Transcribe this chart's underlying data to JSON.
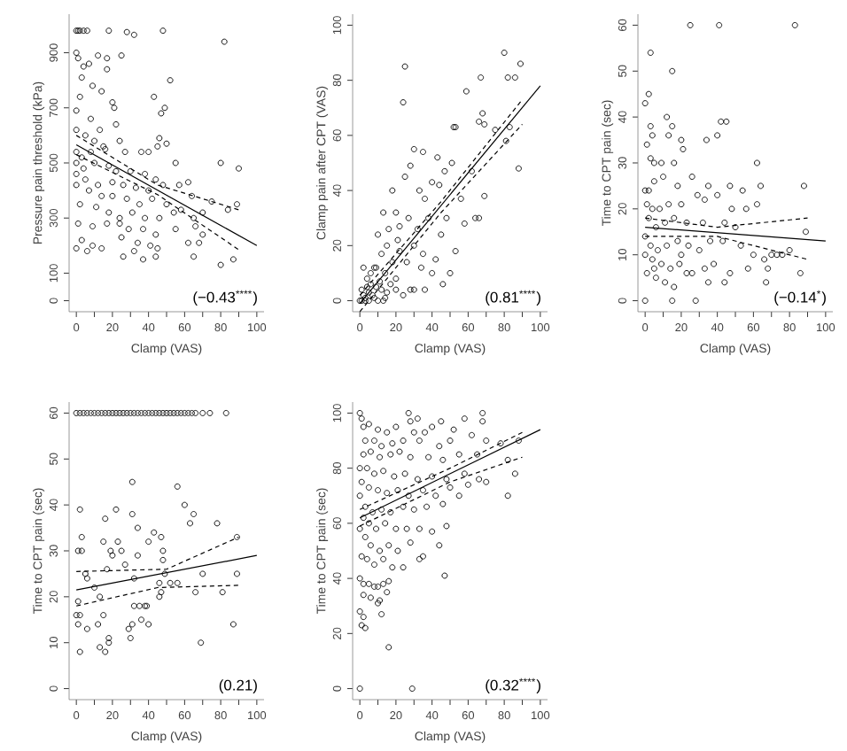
{
  "chart_data": [
    {
      "type": "scatter",
      "xlabel": "Clamp (VAS)",
      "ylabel": "Pressure pain threshold (kPa)",
      "xlim": [
        -4,
        104
      ],
      "ylim": [
        -40,
        1040
      ],
      "xticks": [
        0,
        {
          "value": 10,
          "label": null
        },
        20,
        {
          "value": 30,
          "label": null
        },
        40,
        {
          "value": 50,
          "label": null
        },
        60,
        {
          "value": 70,
          "label": null
        },
        80,
        {
          "value": 90,
          "label": null
        },
        100
      ],
      "yticks": [
        0,
        100,
        300,
        500,
        700,
        900
      ],
      "annotations": [
        "(−0.43$^{****}$)"
      ],
      "series": [
        {
          "marker": "circle",
          "color": "#000000",
          "x": [
            0,
            1,
            2,
            4,
            6,
            18,
            28,
            32,
            48,
            82,
            0,
            1,
            4,
            7,
            12,
            17,
            25,
            17,
            52,
            3,
            9,
            2,
            0,
            14,
            20,
            21,
            43,
            47,
            49,
            8,
            13,
            22,
            0,
            5,
            10,
            15,
            24,
            46,
            50,
            0,
            3,
            8,
            16,
            27,
            36,
            40,
            45,
            0,
            4,
            10,
            18,
            22,
            30,
            38,
            44,
            55,
            0,
            5,
            12,
            20,
            26,
            33,
            40,
            48,
            57,
            62,
            80,
            90,
            0,
            7,
            14,
            20,
            28,
            35,
            42,
            50,
            58,
            64,
            75,
            84,
            89,
            2,
            11,
            18,
            24,
            31,
            38,
            46,
            54,
            65,
            70,
            1,
            9,
            17,
            24,
            29,
            37,
            44,
            55,
            66,
            70,
            3,
            9,
            14,
            25,
            34,
            41,
            45,
            62,
            68,
            0,
            6,
            26,
            44,
            65,
            80,
            87,
            32,
            37
          ],
          "values": [
            980,
            980,
            980,
            980,
            980,
            980,
            975,
            965,
            980,
            940,
            900,
            880,
            850,
            860,
            890,
            880,
            890,
            840,
            800,
            810,
            780,
            740,
            690,
            760,
            720,
            700,
            740,
            680,
            700,
            660,
            620,
            640,
            620,
            600,
            580,
            560,
            580,
            590,
            570,
            540,
            520,
            540,
            550,
            540,
            540,
            540,
            560,
            500,
            480,
            500,
            490,
            470,
            470,
            460,
            440,
            500,
            460,
            440,
            420,
            430,
            420,
            410,
            400,
            420,
            420,
            430,
            500,
            480,
            420,
            400,
            380,
            380,
            370,
            350,
            370,
            350,
            330,
            380,
            360,
            330,
            350,
            350,
            340,
            320,
            300,
            320,
            300,
            300,
            320,
            300,
            320,
            280,
            270,
            280,
            280,
            260,
            260,
            240,
            260,
            270,
            240,
            220,
            200,
            190,
            230,
            210,
            200,
            190,
            210,
            210,
            190,
            180,
            160,
            160,
            160,
            130,
            150,
            180,
            150
          ]
        },
        {
          "type": "line",
          "marker": "none",
          "line_style": "solid",
          "color": "#000000",
          "x": [
            0,
            100
          ],
          "values": [
            566,
            200
          ]
        },
        {
          "type": "line",
          "marker": "none",
          "line_style": "dashed",
          "color": "#000000",
          "x": [
            0,
            45,
            90
          ],
          "values": [
            600,
            420,
            330
          ]
        },
        {
          "type": "line",
          "marker": "none",
          "line_style": "dashed",
          "color": "#000000",
          "x": [
            0,
            45,
            90
          ],
          "values": [
            530,
            385,
            185
          ]
        }
      ]
    },
    {
      "type": "scatter",
      "xlabel": "Clamp (VAS)",
      "ylabel": "Clamp pain after CPT (VAS)",
      "xlim": [
        -4,
        104
      ],
      "ylim": [
        -4,
        104
      ],
      "xticks": [
        0,
        {
          "value": 10,
          "label": null
        },
        20,
        {
          "value": 30,
          "label": null
        },
        40,
        {
          "value": 50,
          "label": null
        },
        60,
        {
          "value": 70,
          "label": null
        },
        80,
        {
          "value": 90,
          "label": null
        },
        100
      ],
      "yticks": [
        0,
        20,
        40,
        60,
        80,
        100
      ],
      "annotations": [
        "(0.81$^{****}$)"
      ],
      "series": [
        {
          "marker": "circle",
          "color": "#000000",
          "x": [
            80,
            89,
            25,
            82,
            86,
            67,
            59,
            24,
            68,
            66,
            69,
            75,
            52,
            53,
            83,
            81,
            30,
            35,
            88,
            43,
            47,
            62,
            28,
            51,
            40,
            44,
            18,
            25,
            33,
            36,
            56,
            69,
            66,
            20,
            13,
            27,
            38,
            48,
            58,
            64,
            16,
            22,
            32,
            45,
            53,
            10,
            15,
            21,
            30,
            35,
            42,
            50,
            12,
            18,
            26,
            34,
            40,
            46,
            8,
            14,
            20,
            28,
            30,
            36,
            2,
            4,
            6,
            9,
            12,
            15,
            20,
            1,
            2,
            3,
            5,
            7,
            0,
            1,
            3,
            5,
            8,
            10,
            14,
            4,
            6,
            9,
            11,
            13,
            17,
            22,
            24
          ],
          "values": [
            90,
            86,
            85,
            81,
            81,
            81,
            76,
            72,
            68,
            65,
            64,
            62,
            63,
            63,
            63,
            58,
            55,
            54,
            48,
            52,
            47,
            47,
            49,
            50,
            43,
            42,
            40,
            45,
            40,
            37,
            37,
            38,
            30,
            32,
            32,
            30,
            30,
            30,
            28,
            30,
            26,
            27,
            26,
            24,
            18,
            24,
            20,
            22,
            20,
            17,
            15,
            10,
            17,
            14,
            14,
            12,
            10,
            6,
            12,
            10,
            8,
            4,
            4,
            4,
            12,
            8,
            6,
            5,
            4,
            3,
            4,
            4,
            2,
            1,
            3,
            2,
            0,
            0,
            0,
            0,
            1,
            0,
            1,
            5,
            10,
            12,
            7,
            0,
            6,
            18,
            2
          ]
        },
        {
          "type": "line",
          "marker": "none",
          "line_style": "solid",
          "color": "#000000",
          "x": [
            0,
            100
          ],
          "values": [
            -1,
            78
          ]
        },
        {
          "type": "line",
          "marker": "none",
          "line_style": "dashed",
          "color": "#000000",
          "x": [
            0,
            45,
            90
          ],
          "values": [
            2,
            36,
            73
          ]
        },
        {
          "type": "line",
          "marker": "none",
          "line_style": "dashed",
          "color": "#000000",
          "x": [
            0,
            45,
            90
          ],
          "values": [
            -4,
            32,
            64
          ]
        }
      ]
    },
    {
      "type": "scatter",
      "xlabel": "Clamp (VAS)",
      "ylabel": "Time to CPT pain (sec)",
      "xlim": [
        -4,
        104
      ],
      "ylim": [
        -2.4,
        62.4
      ],
      "xticks": [
        0,
        {
          "value": 10,
          "label": null
        },
        20,
        {
          "value": 30,
          "label": null
        },
        40,
        {
          "value": 50,
          "label": null
        },
        60,
        {
          "value": 70,
          "label": null
        },
        80,
        {
          "value": 90,
          "label": null
        },
        100
      ],
      "yticks": [
        0,
        10,
        20,
        30,
        40,
        50,
        60
      ],
      "annotations": [
        "(−0.14$^{*}$)"
      ],
      "series": [
        {
          "marker": "circle",
          "color": "#000000",
          "x": [
            25,
            41,
            83,
            3,
            15,
            0,
            2,
            3,
            4,
            12,
            13,
            15,
            40,
            42,
            45,
            34,
            20,
            21,
            1,
            3,
            5,
            9,
            16,
            62,
            0,
            2,
            5,
            10,
            18,
            26,
            35,
            47,
            54,
            64,
            88,
            1,
            4,
            8,
            13,
            20,
            29,
            33,
            40,
            48,
            56,
            62,
            2,
            6,
            11,
            16,
            23,
            32,
            44,
            50,
            70,
            0,
            3,
            7,
            12,
            18,
            24,
            30,
            36,
            43,
            53,
            60,
            66,
            80,
            0,
            4,
            9,
            14,
            19,
            26,
            33,
            38,
            47,
            57,
            68,
            86,
            1,
            6,
            11,
            16,
            23,
            35,
            44,
            67,
            0,
            15,
            28,
            5,
            20,
            89,
            73,
            76
          ],
          "values": [
            60,
            60,
            60,
            54,
            50,
            43,
            45,
            38,
            36,
            40,
            36,
            38,
            36,
            39,
            39,
            35,
            35,
            33,
            34,
            31,
            30,
            30,
            30,
            30,
            24,
            24,
            26,
            27,
            25,
            27,
            25,
            25,
            24,
            25,
            25,
            21,
            20,
            20,
            21,
            21,
            23,
            22,
            23,
            20,
            20,
            21,
            18,
            16,
            17,
            18,
            17,
            17,
            17,
            16,
            10,
            14,
            12,
            11,
            12,
            13,
            12,
            11,
            13,
            13,
            12,
            10,
            9,
            11,
            10,
            9,
            8,
            7,
            8,
            6,
            7,
            8,
            6,
            7,
            7,
            6,
            6,
            5,
            4,
            3,
            6,
            4,
            4,
            4,
            0,
            0,
            0,
            7,
            10,
            15,
            10,
            10
          ]
        },
        {
          "type": "line",
          "marker": "none",
          "line_style": "solid",
          "color": "#000000",
          "x": [
            0,
            100
          ],
          "values": [
            16,
            13
          ]
        },
        {
          "type": "line",
          "marker": "none",
          "line_style": "dashed",
          "color": "#000000",
          "x": [
            0,
            40,
            90
          ],
          "values": [
            18,
            16,
            18
          ]
        },
        {
          "type": "line",
          "marker": "none",
          "line_style": "dashed",
          "color": "#000000",
          "x": [
            0,
            40,
            90
          ],
          "values": [
            14,
            14,
            9
          ]
        }
      ]
    },
    {
      "type": "scatter",
      "xlabel": "Clamp (VAS)",
      "ylabel": "Time to CPT pain (sec)",
      "xlim": [
        -4,
        104
      ],
      "ylim": [
        -2.4,
        62.4
      ],
      "xticks": [
        0,
        {
          "value": 10,
          "label": null
        },
        20,
        {
          "value": 30,
          "label": null
        },
        40,
        {
          "value": 50,
          "label": null
        },
        60,
        {
          "value": 70,
          "label": null
        },
        80,
        {
          "value": 90,
          "label": null
        },
        100
      ],
      "yticks": [
        0,
        10,
        20,
        30,
        40,
        50,
        60
      ],
      "annotations": [
        "(0.21)"
      ],
      "series": [
        {
          "marker": "circle",
          "color": "#000000",
          "x": [
            0,
            2,
            4,
            6,
            8,
            10,
            12,
            14,
            16,
            18,
            20,
            22,
            24,
            26,
            28,
            30,
            32,
            34,
            36,
            38,
            40,
            42,
            44,
            46,
            48,
            50,
            52,
            54,
            56,
            58,
            60,
            62,
            64,
            66,
            70,
            74,
            83,
            56,
            31,
            60,
            2,
            22,
            43,
            65,
            63,
            78,
            16,
            89,
            47,
            3,
            31,
            34,
            1,
            3,
            19,
            20,
            25,
            23,
            15,
            40,
            48,
            48,
            27,
            34,
            5,
            6,
            10,
            13,
            17,
            32,
            49,
            52,
            56,
            70,
            89,
            1,
            0,
            2,
            1,
            6,
            12,
            15,
            13,
            16,
            18,
            18,
            2,
            29,
            30,
            31,
            32,
            35,
            36,
            38,
            39,
            40,
            46,
            47,
            46,
            66,
            81,
            87,
            69
          ],
          "values": [
            60,
            60,
            60,
            60,
            60,
            60,
            60,
            60,
            60,
            60,
            60,
            60,
            60,
            60,
            60,
            60,
            60,
            60,
            60,
            60,
            60,
            60,
            60,
            60,
            60,
            60,
            60,
            60,
            60,
            60,
            60,
            60,
            60,
            60,
            60,
            60,
            60,
            44,
            45,
            40,
            39,
            39,
            34,
            38,
            36,
            36,
            37,
            33,
            33,
            33,
            38,
            35,
            30,
            30,
            30,
            29,
            30,
            32,
            32,
            32,
            30,
            28,
            27,
            29,
            25,
            24,
            22,
            20,
            26,
            24,
            25,
            23,
            23,
            25,
            25,
            19,
            16,
            16,
            14,
            13,
            14,
            16,
            9,
            8,
            10,
            11,
            8,
            13,
            11,
            14,
            18,
            18,
            15,
            18,
            18,
            14,
            20,
            21,
            23,
            21,
            21,
            14,
            10
          ]
        },
        {
          "type": "line",
          "marker": "none",
          "line_style": "solid",
          "color": "#000000",
          "x": [
            0,
            100
          ],
          "values": [
            21.5,
            29
          ]
        },
        {
          "type": "line",
          "marker": "none",
          "line_style": "dashed",
          "color": "#000000",
          "x": [
            0,
            50,
            90
          ],
          "values": [
            25.5,
            26,
            33
          ]
        },
        {
          "type": "line",
          "marker": "none",
          "line_style": "dashed",
          "color": "#000000",
          "x": [
            0,
            45,
            90
          ],
          "values": [
            18,
            22,
            22.5
          ]
        }
      ]
    },
    {
      "type": "scatter",
      "xlabel": "Clamp (VAS)",
      "ylabel": "Time to CPT pain (sec)",
      "xlim": [
        -4,
        104
      ],
      "ylim": [
        -4,
        104
      ],
      "xticks": [
        0,
        {
          "value": 10,
          "label": null
        },
        20,
        {
          "value": 30,
          "label": null
        },
        40,
        {
          "value": 50,
          "label": null
        },
        60,
        {
          "value": 70,
          "label": null
        },
        80,
        {
          "value": 90,
          "label": null
        },
        100
      ],
      "yticks": [
        0,
        20,
        40,
        60,
        80,
        100
      ],
      "annotations": [
        "(0.32$^{****}$)"
      ],
      "series": [
        {
          "marker": "circle",
          "color": "#000000",
          "x": [
            0,
            1,
            2,
            5,
            10,
            15,
            20,
            27,
            28,
            32,
            36,
            45,
            58,
            68,
            68,
            52,
            40,
            30,
            3,
            8,
            12,
            18,
            24,
            33,
            44,
            50,
            62,
            70,
            88,
            78,
            2,
            6,
            11,
            17,
            22,
            28,
            38,
            46,
            55,
            65,
            82,
            0,
            4,
            8,
            13,
            19,
            25,
            32,
            40,
            48,
            58,
            66,
            86,
            1,
            5,
            10,
            15,
            21,
            27,
            35,
            42,
            50,
            60,
            70,
            82,
            0,
            3,
            7,
            12,
            17,
            24,
            30,
            37,
            46,
            55,
            2,
            5,
            9,
            14,
            20,
            26,
            33,
            40,
            48,
            0,
            3,
            6,
            11,
            16,
            21,
            28,
            35,
            44,
            1,
            4,
            8,
            13,
            18,
            24,
            33,
            47,
            0,
            2,
            5,
            8,
            10,
            13,
            16,
            2,
            6,
            11,
            15,
            10,
            12,
            0,
            2,
            1,
            3,
            16,
            0,
            29
          ],
          "values": [
            100,
            98,
            95,
            96,
            94,
            93,
            95,
            100,
            97,
            98,
            93,
            97,
            98,
            100,
            97,
            94,
            95,
            93,
            90,
            90,
            88,
            89,
            90,
            90,
            88,
            90,
            92,
            90,
            90,
            89,
            85,
            86,
            84,
            85,
            86,
            84,
            84,
            83,
            85,
            85,
            83,
            80,
            80,
            78,
            79,
            77,
            78,
            76,
            77,
            76,
            78,
            76,
            78,
            75,
            73,
            72,
            71,
            72,
            70,
            72,
            70,
            73,
            74,
            75,
            70,
            70,
            66,
            64,
            65,
            64,
            66,
            65,
            66,
            67,
            70,
            62,
            60,
            58,
            60,
            58,
            58,
            58,
            57,
            59,
            58,
            55,
            52,
            50,
            52,
            50,
            53,
            48,
            52,
            48,
            47,
            45,
            47,
            44,
            44,
            47,
            41,
            40,
            38,
            38,
            37,
            37,
            38,
            39,
            34,
            33,
            32,
            35,
            31,
            27,
            28,
            26,
            23,
            22,
            15,
            0,
            0
          ]
        },
        {
          "type": "line",
          "marker": "none",
          "line_style": "solid",
          "color": "#000000",
          "x": [
            0,
            100
          ],
          "values": [
            62,
            94
          ]
        },
        {
          "type": "line",
          "marker": "none",
          "line_style": "dashed",
          "color": "#000000",
          "x": [
            0,
            50,
            90
          ],
          "values": [
            65,
            80,
            93
          ]
        },
        {
          "type": "line",
          "marker": "none",
          "line_style": "dashed",
          "color": "#000000",
          "x": [
            0,
            50,
            90
          ],
          "values": [
            59,
            75,
            84
          ]
        }
      ]
    }
  ]
}
